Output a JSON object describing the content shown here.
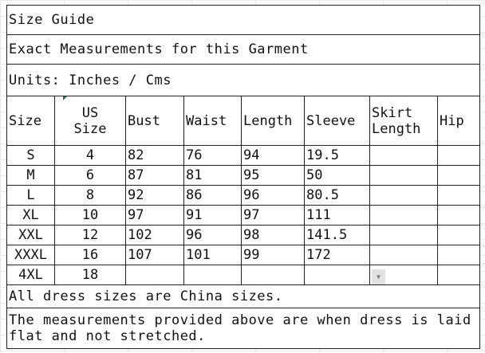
{
  "title": "Size Guide",
  "subtitle": "Exact Measurements for this Garment",
  "units": "Units: Inches / Cms",
  "headers": [
    "Size",
    "US\nSize",
    "Bust",
    "Waist",
    "Length",
    "Sleeve",
    "Skirt\nLength",
    "Hip"
  ],
  "header_lines": {
    "us": [
      "US",
      "Size"
    ],
    "skirt": [
      "Skirt",
      "Length"
    ]
  },
  "rows": [
    [
      "S",
      "4",
      "82",
      "76",
      "94",
      "19.5",
      "",
      ""
    ],
    [
      "M",
      "6",
      "87",
      "81",
      "95",
      "50",
      "",
      ""
    ],
    [
      "L",
      "8",
      "92",
      "86",
      "96",
      "80.5",
      "",
      ""
    ],
    [
      "XL",
      "10",
      "97",
      "91",
      "97",
      "111",
      "",
      ""
    ],
    [
      "XXL",
      "12",
      "102",
      "96",
      "98",
      "141.5",
      "",
      ""
    ],
    [
      "XXXL",
      "16",
      "107",
      "101",
      "99",
      "172",
      "",
      ""
    ],
    [
      "4XL",
      "18",
      "",
      "",
      "",
      "",
      "",
      ""
    ]
  ],
  "note1": "All dress sizes are China sizes.",
  "note2": "The measurements provided above are when dress is laid flat and not stretched."
}
